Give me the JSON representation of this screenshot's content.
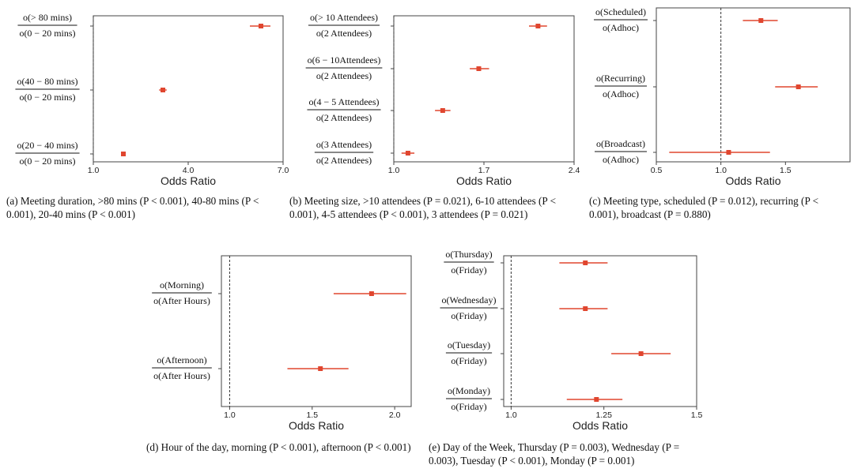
{
  "colors": {
    "marker": "#e0462f",
    "frame": "#444444",
    "ref_line": "#333333"
  },
  "chart_data": [
    {
      "id": "a",
      "type": "scatter",
      "xlabel": "Odds Ratio",
      "xlim": [
        1.0,
        7.0
      ],
      "xticks": [
        1.0,
        4.0,
        7.0
      ],
      "xtick_labels": [
        "1.0",
        "4.0",
        "7.0"
      ],
      "reference_x": 1.0,
      "rows": [
        {
          "label": [
            "o(> 80 mins)",
            "o(0 − 20 mins)"
          ],
          "est": 6.3,
          "lo": 5.95,
          "hi": 6.6
        },
        {
          "label": [
            "o(40 − 80 mins)",
            "o(0 − 20 mins)"
          ],
          "est": 3.2,
          "lo": 3.08,
          "hi": 3.32
        },
        {
          "label": [
            "o(20 − 40 mins)",
            "o(0 − 20 mins)"
          ],
          "est": 1.95,
          "lo": 1.92,
          "hi": 1.98
        }
      ],
      "caption": "(a) Meeting duration, >80 mins (P < 0.001), 40-80 mins (P < 0.001), 20-40 mins (P < 0.001)"
    },
    {
      "id": "b",
      "type": "scatter",
      "xlabel": "Odds Ratio",
      "xlim": [
        1.0,
        2.4
      ],
      "xticks": [
        1.0,
        1.7,
        2.4
      ],
      "xtick_labels": [
        "1.0",
        "1.7",
        "2.4"
      ],
      "reference_x": 1.0,
      "rows": [
        {
          "label": [
            "o(> 10 Attendees)",
            "o(2 Attendees)"
          ],
          "est": 2.12,
          "lo": 2.05,
          "hi": 2.19
        },
        {
          "label": [
            "o(6 − 10Attendees)",
            "o(2 Attendees)"
          ],
          "est": 1.66,
          "lo": 1.59,
          "hi": 1.74
        },
        {
          "label": [
            "o(4 − 5 Attendees)",
            "o(2 Attendees)"
          ],
          "est": 1.38,
          "lo": 1.32,
          "hi": 1.44
        },
        {
          "label": [
            "o(3 Attendees)",
            "o(2 Attendees)"
          ],
          "est": 1.11,
          "lo": 1.06,
          "hi": 1.16
        }
      ],
      "caption": "(b) Meeting size, >10 attendees (P = 0.021), 6-10 attendees (P < 0.001), 4-5 attendees (P < 0.001), 3 attendees (P = 0.021)"
    },
    {
      "id": "c",
      "type": "scatter",
      "xlabel": "Odds Ratio",
      "xlim": [
        0.5,
        2.0
      ],
      "xticks": [
        0.5,
        1.0,
        1.5
      ],
      "xtick_labels": [
        "0.5",
        "1.0",
        "1.5"
      ],
      "reference_x": 1.0,
      "rows": [
        {
          "label": [
            "o(Scheduled)",
            "o(Adhoc)"
          ],
          "est": 1.31,
          "lo": 1.17,
          "hi": 1.44
        },
        {
          "label": [
            "o(Recurring)",
            "o(Adhoc)"
          ],
          "est": 1.6,
          "lo": 1.42,
          "hi": 1.75
        },
        {
          "label": [
            "o(Broadcast)",
            "o(Adhoc)"
          ],
          "est": 1.06,
          "lo": 0.6,
          "hi": 1.38
        }
      ],
      "caption": "(c) Meeting type, scheduled (P = 0.012), recurring (P < 0.001), broadcast (P = 0.880)"
    },
    {
      "id": "d",
      "type": "scatter",
      "xlabel": "Odds Ratio",
      "xlim": [
        0.95,
        2.1
      ],
      "xticks": [
        1.0,
        1.5,
        2.0
      ],
      "xtick_labels": [
        "1.0",
        "1.5",
        "2.0"
      ],
      "reference_x": 1.0,
      "rows": [
        {
          "label": [
            "o(Morning)",
            "o(After Hours)"
          ],
          "est": 1.86,
          "lo": 1.63,
          "hi": 2.07
        },
        {
          "label": [
            "o(Afternoon)",
            "o(After Hours)"
          ],
          "est": 1.55,
          "lo": 1.35,
          "hi": 1.72
        }
      ],
      "caption": "(d) Hour of the day, morning (P < 0.001), afternoon (P < 0.001)"
    },
    {
      "id": "e",
      "type": "scatter",
      "xlabel": "Odds Ratio",
      "xlim": [
        0.98,
        1.5
      ],
      "xticks": [
        1.0,
        1.25,
        1.5
      ],
      "xtick_labels": [
        "1.0",
        "1.25",
        "1.5"
      ],
      "reference_x": 1.0,
      "rows": [
        {
          "label": [
            "o(Thursday)",
            "o(Friday)"
          ],
          "est": 1.2,
          "lo": 1.13,
          "hi": 1.26
        },
        {
          "label": [
            "o(Wednesday)",
            "o(Friday)"
          ],
          "est": 1.2,
          "lo": 1.13,
          "hi": 1.26
        },
        {
          "label": [
            "o(Tuesday)",
            "o(Friday)"
          ],
          "est": 1.35,
          "lo": 1.27,
          "hi": 1.43
        },
        {
          "label": [
            "o(Monday)",
            "o(Friday)"
          ],
          "est": 1.23,
          "lo": 1.15,
          "hi": 1.3
        }
      ],
      "caption": "(e) Day of the Week, Thursday (P = 0.003), Wednesday (P = 0.003), Tuesday (P < 0.001), Monday (P = 0.001)"
    }
  ]
}
